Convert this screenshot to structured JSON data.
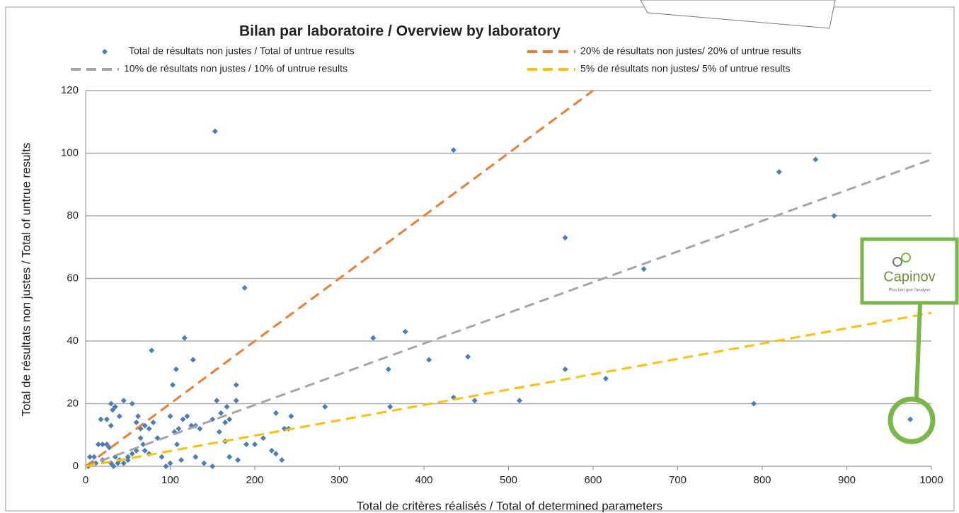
{
  "chart_data": {
    "type": "scatter",
    "title": "Bilan par laboratoire / Overview by laboratory",
    "xlabel": "Total de critères réalisés / Total of determined parameters",
    "ylabel": "Total de résultats non justes / Total of untrue results",
    "xlim": [
      0,
      1000
    ],
    "ylim": [
      0,
      120
    ],
    "xticks": [
      0,
      100,
      200,
      300,
      400,
      500,
      600,
      700,
      800,
      900,
      1000
    ],
    "yticks": [
      0,
      20,
      40,
      60,
      80,
      100,
      120
    ],
    "grid": true,
    "series": [
      {
        "name": "Total de résultats non justes / Total of untrue results",
        "color": "#4a7ebb",
        "style": "marker",
        "x": [
          153,
          435,
          188,
          78,
          117,
          103,
          107,
          127,
          340,
          378,
          358,
          406,
          452,
          435,
          360,
          460,
          513,
          567,
          567,
          660,
          615,
          790,
          820,
          863,
          885,
          975,
          283,
          243,
          225,
          235,
          240,
          232,
          220,
          225,
          210,
          200,
          190,
          178,
          178,
          180,
          167,
          165,
          170,
          155,
          160,
          150,
          158,
          165,
          170,
          150,
          140,
          130,
          135,
          130,
          120,
          115,
          125,
          110,
          100,
          105,
          108,
          113,
          95,
          100,
          90,
          85,
          80,
          75,
          70,
          65,
          60,
          55,
          45,
          40,
          35,
          30,
          32,
          30,
          25,
          18,
          20,
          25,
          28,
          15,
          10,
          5,
          8,
          35,
          40,
          45,
          50,
          60,
          65,
          70,
          75,
          30,
          33,
          38,
          20,
          12,
          3,
          50,
          55,
          62,
          68
        ],
        "values": [
          107,
          101,
          57,
          37,
          41,
          26,
          31,
          34,
          41,
          43,
          31,
          34,
          35,
          22,
          19,
          21,
          21,
          73,
          31,
          63,
          28,
          20,
          94,
          98,
          80,
          15,
          19,
          16,
          17,
          12,
          12,
          2,
          5,
          4,
          9,
          7,
          7,
          26,
          21,
          2,
          19,
          14,
          15,
          21,
          17,
          15,
          11,
          8,
          3,
          0,
          1,
          3,
          12,
          13,
          16,
          15,
          13,
          12,
          16,
          11,
          7,
          2,
          0,
          1,
          3,
          9,
          14,
          4,
          5,
          12,
          14,
          20,
          21,
          16,
          19,
          20,
          18,
          13,
          15,
          15,
          7,
          7,
          6,
          7,
          3,
          3,
          1,
          3,
          2,
          1,
          2,
          5,
          9,
          13,
          12,
          1,
          0,
          1,
          2,
          1,
          0,
          3,
          4,
          16,
          7
        ]
      },
      {
        "name": "10% de résultats non justes / 10% of untrue results",
        "color": "#a5a5a5",
        "style": "dashed",
        "x": [
          0,
          1000
        ],
        "values": [
          0,
          98
        ]
      },
      {
        "name": "20% de résultats non justes/ 20% of untrue results",
        "color": "#ed7d31",
        "style": "dashed",
        "x": [
          0,
          600
        ],
        "values": [
          0,
          120
        ]
      },
      {
        "name": "5% de résultats non justes/ 5% of untrue results",
        "color": "#ffc000",
        "style": "dashed",
        "x": [
          0,
          1000
        ],
        "values": [
          0,
          49
        ]
      }
    ]
  },
  "logo": {
    "name": "Capinov",
    "tagline": "Plus loin que l'analyse"
  }
}
